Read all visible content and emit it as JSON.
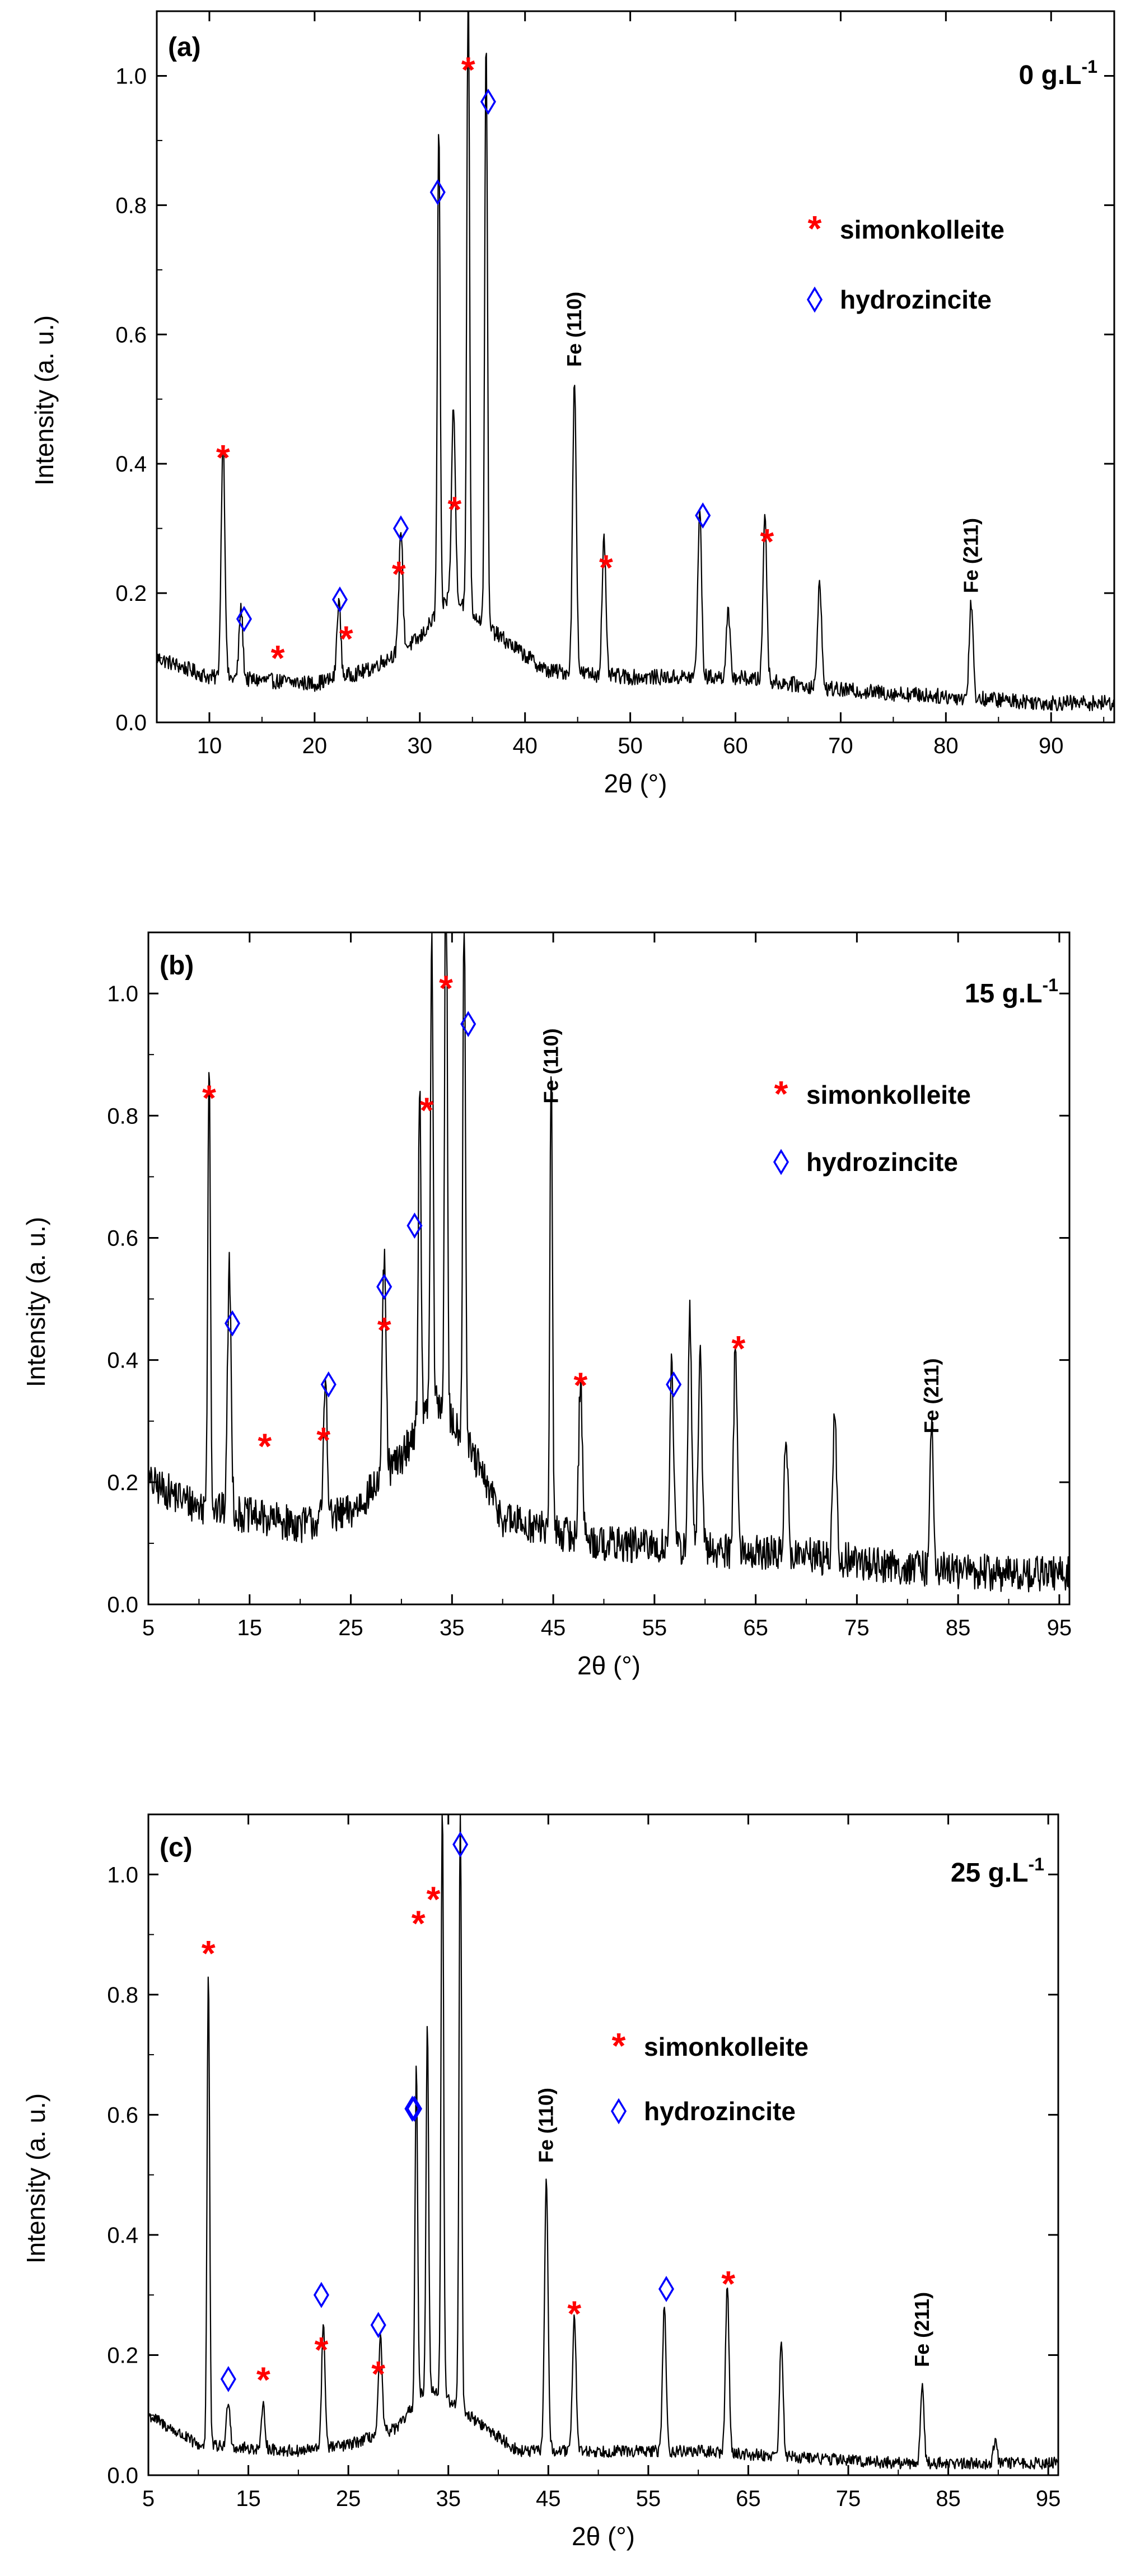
{
  "chart_data": [
    {
      "type": "line",
      "panel": "(a)",
      "concentration": {
        "main": "0 g.L",
        "sup": "-1"
      },
      "xlabel": {
        "prefix": "2",
        "theta": "θ",
        "suffix": " (°)"
      },
      "ylabel": "Intensity (a. u.)",
      "xlim": [
        5,
        96
      ],
      "ylim": [
        0,
        1.1
      ],
      "xticks": [
        "10",
        "20",
        "30",
        "40",
        "50",
        "60",
        "70",
        "80",
        "90"
      ],
      "yticks": [
        "0.0",
        "0.2",
        "0.4",
        "0.6",
        "0.8",
        "1.0"
      ],
      "legend": {
        "simonkolleite": "simonkolleite",
        "hydrozincite": "hydrozincite",
        "star_symbol": "*"
      },
      "baseline": [
        [
          5,
          0.1
        ],
        [
          10,
          0.07
        ],
        [
          20,
          0.06
        ],
        [
          25,
          0.08
        ],
        [
          30,
          0.13
        ],
        [
          33,
          0.2
        ],
        [
          37,
          0.14
        ],
        [
          42,
          0.08
        ],
        [
          50,
          0.07
        ],
        [
          60,
          0.07
        ],
        [
          70,
          0.05
        ],
        [
          80,
          0.04
        ],
        [
          90,
          0.03
        ],
        [
          96,
          0.03
        ]
      ],
      "noise": 0.012,
      "peaks": [
        {
          "x": 11.3,
          "y": 0.37
        },
        {
          "x": 13.0,
          "y": 0.11
        },
        {
          "x": 22.3,
          "y": 0.12
        },
        {
          "x": 28.2,
          "y": 0.19
        },
        {
          "x": 31.8,
          "y": 0.75
        },
        {
          "x": 33.2,
          "y": 0.29
        },
        {
          "x": 34.6,
          "y": 1.0
        },
        {
          "x": 36.3,
          "y": 0.92
        },
        {
          "x": 44.7,
          "y": 0.45
        },
        {
          "x": 47.5,
          "y": 0.21
        },
        {
          "x": 56.6,
          "y": 0.26
        },
        {
          "x": 59.3,
          "y": 0.1
        },
        {
          "x": 62.8,
          "y": 0.26
        },
        {
          "x": 68.0,
          "y": 0.17
        },
        {
          "x": 82.4,
          "y": 0.15
        }
      ],
      "simonkolleite_markers": [
        [
          11.3,
          0.42
        ],
        [
          16.5,
          0.11
        ],
        [
          23.0,
          0.14
        ],
        [
          28.0,
          0.24
        ],
        [
          33.3,
          0.34
        ],
        [
          34.6,
          1.02
        ],
        [
          47.7,
          0.25
        ],
        [
          63.0,
          0.29
        ]
      ],
      "hydrozincite_markers": [
        [
          13.3,
          0.16
        ],
        [
          22.4,
          0.19
        ],
        [
          28.2,
          0.3
        ],
        [
          31.7,
          0.82
        ],
        [
          36.5,
          0.96
        ],
        [
          56.9,
          0.32
        ]
      ],
      "fe_labels": [
        {
          "text": "Fe (110)",
          "x": 44.7,
          "y": 0.55
        },
        {
          "text": "Fe (211)",
          "x": 82.4,
          "y": 0.2
        }
      ]
    },
    {
      "type": "line",
      "panel": "(b)",
      "concentration": {
        "main": "15 g.L",
        "sup": "-1"
      },
      "xlabel": {
        "prefix": "2",
        "theta": "θ",
        "suffix": " (°)"
      },
      "ylabel": "Intensity (a. u.)",
      "xlim": [
        5,
        96
      ],
      "ylim": [
        0,
        1.1
      ],
      "xticks": [
        "5",
        "15",
        "25",
        "35",
        "45",
        "55",
        "65",
        "75",
        "85",
        "95"
      ],
      "yticks": [
        "0.0",
        "0.2",
        "0.4",
        "0.6",
        "0.8",
        "1.0"
      ],
      "legend": {
        "simonkolleite": "simonkolleite",
        "hydrozincite": "hydrozincite",
        "star_symbol": "*"
      },
      "baseline": [
        [
          5,
          0.2
        ],
        [
          10,
          0.16
        ],
        [
          20,
          0.13
        ],
        [
          25,
          0.15
        ],
        [
          30,
          0.24
        ],
        [
          33,
          0.34
        ],
        [
          36,
          0.28
        ],
        [
          40,
          0.14
        ],
        [
          50,
          0.1
        ],
        [
          60,
          0.09
        ],
        [
          70,
          0.08
        ],
        [
          80,
          0.06
        ],
        [
          90,
          0.05
        ],
        [
          96,
          0.05
        ]
      ],
      "noise": 0.03,
      "peaks": [
        {
          "x": 11.0,
          "y": 0.75
        },
        {
          "x": 13.0,
          "y": 0.4
        },
        {
          "x": 22.5,
          "y": 0.23
        },
        {
          "x": 28.3,
          "y": 0.36
        },
        {
          "x": 31.8,
          "y": 0.56
        },
        {
          "x": 33.0,
          "y": 0.77
        },
        {
          "x": 34.4,
          "y": 1.0
        },
        {
          "x": 36.2,
          "y": 0.9
        },
        {
          "x": 44.8,
          "y": 0.74
        },
        {
          "x": 47.7,
          "y": 0.26
        },
        {
          "x": 56.7,
          "y": 0.3
        },
        {
          "x": 58.5,
          "y": 0.38
        },
        {
          "x": 59.5,
          "y": 0.32
        },
        {
          "x": 63.0,
          "y": 0.34
        },
        {
          "x": 68.0,
          "y": 0.2
        },
        {
          "x": 72.8,
          "y": 0.25
        },
        {
          "x": 82.4,
          "y": 0.23
        }
      ],
      "simonkolleite_markers": [
        [
          11.0,
          0.84
        ],
        [
          16.5,
          0.27
        ],
        [
          22.3,
          0.28
        ],
        [
          28.3,
          0.46
        ],
        [
          32.5,
          0.82
        ],
        [
          34.4,
          1.02
        ],
        [
          47.7,
          0.37
        ],
        [
          63.3,
          0.43
        ]
      ],
      "hydrozincite_markers": [
        [
          13.3,
          0.46
        ],
        [
          22.8,
          0.36
        ],
        [
          28.3,
          0.52
        ],
        [
          31.3,
          0.62
        ],
        [
          36.6,
          0.95
        ],
        [
          56.9,
          0.36
        ]
      ],
      "fe_labels": [
        {
          "text": "Fe (110)",
          "x": 44.8,
          "y": 0.82
        },
        {
          "text": "Fe (211)",
          "x": 82.4,
          "y": 0.28
        }
      ]
    },
    {
      "type": "line",
      "panel": "(c)",
      "concentration": {
        "main": "25 g.L",
        "sup": "-1"
      },
      "xlabel": {
        "prefix": "2",
        "theta": "θ",
        "suffix": " (°)"
      },
      "ylabel": "Intensity (a. u.)",
      "xlim": [
        5,
        96
      ],
      "ylim": [
        0,
        1.1
      ],
      "xticks": [
        "5",
        "15",
        "25",
        "35",
        "45",
        "55",
        "65",
        "75",
        "85",
        "95"
      ],
      "yticks": [
        "0.0",
        "0.2",
        "0.4",
        "0.6",
        "0.8",
        "1.0"
      ],
      "legend": {
        "simonkolleite": "simonkolleite",
        "hydrozincite": "hydrozincite",
        "star_symbol": "*"
      },
      "baseline": [
        [
          5,
          0.1
        ],
        [
          10,
          0.05
        ],
        [
          20,
          0.04
        ],
        [
          25,
          0.05
        ],
        [
          30,
          0.08
        ],
        [
          33,
          0.15
        ],
        [
          37,
          0.1
        ],
        [
          42,
          0.04
        ],
        [
          50,
          0.04
        ],
        [
          60,
          0.04
        ],
        [
          70,
          0.03
        ],
        [
          80,
          0.02
        ],
        [
          90,
          0.02
        ],
        [
          96,
          0.02
        ]
      ],
      "noise": 0.01,
      "peaks": [
        {
          "x": 11.0,
          "y": 0.79
        },
        {
          "x": 13.0,
          "y": 0.08
        },
        {
          "x": 16.5,
          "y": 0.07
        },
        {
          "x": 22.5,
          "y": 0.2
        },
        {
          "x": 28.2,
          "y": 0.16
        },
        {
          "x": 31.8,
          "y": 0.56
        },
        {
          "x": 32.9,
          "y": 0.6
        },
        {
          "x": 34.4,
          "y": 1.0
        },
        {
          "x": 36.2,
          "y": 1.0
        },
        {
          "x": 44.8,
          "y": 0.45
        },
        {
          "x": 47.6,
          "y": 0.23
        },
        {
          "x": 56.6,
          "y": 0.24
        },
        {
          "x": 62.9,
          "y": 0.28
        },
        {
          "x": 68.3,
          "y": 0.19
        },
        {
          "x": 82.4,
          "y": 0.13
        },
        {
          "x": 89.7,
          "y": 0.04
        }
      ],
      "simonkolleite_markers": [
        [
          11.0,
          0.88
        ],
        [
          16.5,
          0.17
        ],
        [
          22.3,
          0.22
        ],
        [
          28.0,
          0.18
        ],
        [
          32.0,
          0.93
        ],
        [
          33.5,
          0.97
        ],
        [
          47.6,
          0.28
        ],
        [
          63.0,
          0.33
        ]
      ],
      "hydrozincite_markers": [
        [
          13.0,
          0.16
        ],
        [
          22.3,
          0.3
        ],
        [
          28.0,
          0.25
        ],
        [
          31.4,
          0.61
        ],
        [
          31.6,
          0.61
        ],
        [
          36.2,
          1.05
        ],
        [
          56.8,
          0.31
        ]
      ],
      "fe_labels": [
        {
          "text": "Fe (110)",
          "x": 44.8,
          "y": 0.52
        },
        {
          "text": "Fe (211)",
          "x": 82.4,
          "y": 0.18
        }
      ]
    }
  ]
}
